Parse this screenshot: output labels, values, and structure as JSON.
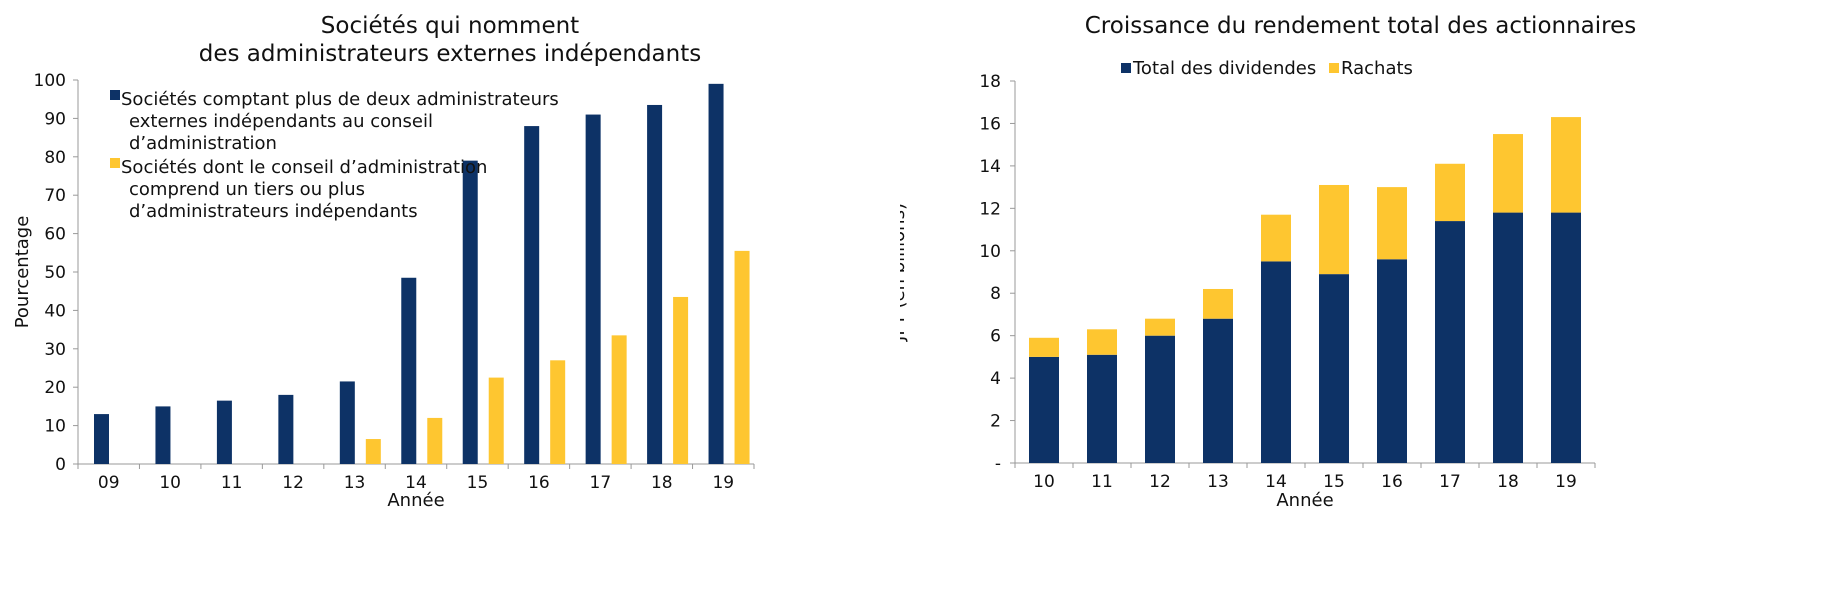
{
  "colors": {
    "navy": "#0d3266",
    "gold": "#fec630",
    "axis": "#999999"
  },
  "chart_data": [
    {
      "type": "bar",
      "title_lines": [
        "Sociétés qui nomment",
        "des administrateurs externes indépendants"
      ],
      "xlabel": "Année",
      "ylabel": "Pourcentage",
      "categories": [
        "09",
        "10",
        "11",
        "12",
        "13",
        "14",
        "15",
        "16",
        "17",
        "18",
        "19"
      ],
      "ylim": [
        0,
        100
      ],
      "yticks": [
        "0",
        "10",
        "20",
        "30",
        "40",
        "50",
        "60",
        "70",
        "80",
        "90",
        "100"
      ],
      "legend_position": "top-left",
      "series": [
        {
          "name": "Sociétés comptant plus de deux administrateurs externes indépendants au conseil d’administration",
          "legend_lines": [
            "Sociétés comptant plus de deux administrateurs",
            "externes indépendants au conseil",
            "d’administration"
          ],
          "color": "#0d3266",
          "values": [
            13,
            15,
            16.5,
            18,
            21.5,
            48.5,
            79,
            88,
            91,
            93.5,
            99
          ]
        },
        {
          "name": "Sociétés dont le conseil d’administration comprend un tiers ou plus d’administrateurs indépendants",
          "legend_lines": [
            "Sociétés dont le conseil d’administration",
            "comprend un tiers ou plus",
            "d’administrateurs indépendants"
          ],
          "color": "#fec630",
          "values": [
            null,
            null,
            null,
            null,
            6.5,
            12,
            22.5,
            27,
            33.5,
            43.5,
            55.5
          ]
        }
      ]
    },
    {
      "type": "bar",
      "stacked": true,
      "title_lines": [
        "Croissance du rendement total des actionnaires"
      ],
      "xlabel": "Année",
      "ylabel": "JPY (en billions)",
      "categories": [
        "10",
        "11",
        "12",
        "13",
        "14",
        "15",
        "16",
        "17",
        "18",
        "19"
      ],
      "ylim": [
        0,
        18
      ],
      "yticks": [
        "-",
        "2",
        "4",
        "6",
        "8",
        "10",
        "12",
        "14",
        "16",
        "18"
      ],
      "legend_position": "top-center",
      "series": [
        {
          "name": "Total des dividendes",
          "color": "#0d3266",
          "values": [
            5.0,
            5.1,
            6.0,
            6.8,
            9.5,
            8.9,
            9.6,
            11.4,
            11.8,
            11.8
          ]
        },
        {
          "name": "Rachats",
          "color": "#fec630",
          "values": [
            0.9,
            1.2,
            0.8,
            1.4,
            2.2,
            4.2,
            3.4,
            2.7,
            3.7,
            4.5
          ]
        }
      ]
    }
  ]
}
